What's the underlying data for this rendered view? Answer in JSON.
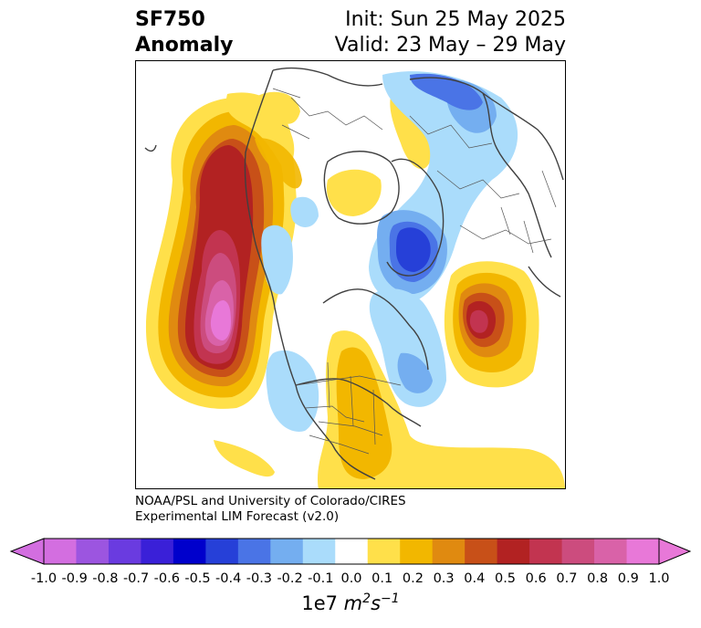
{
  "title": {
    "line1": "SF750",
    "line2": "Anomaly",
    "init": "Init: Sun 25 May 2025",
    "valid": "Valid: 23 May – 29 May"
  },
  "credit": {
    "line1": "NOAA/PSL and University of Colorado/CIRES",
    "line2": "Experimental LIM Forecast (v2.0)"
  },
  "colorbar": {
    "ticks": [
      "-1.0",
      "-0.9",
      "-0.8",
      "-0.7",
      "-0.6",
      "-0.5",
      "-0.4",
      "-0.3",
      "-0.2",
      "-0.1",
      "0.0",
      "0.1",
      "0.2",
      "0.3",
      "0.4",
      "0.5",
      "0.6",
      "0.7",
      "0.8",
      "0.9",
      "1.0"
    ],
    "colors": [
      "#d36ee0",
      "#9c55e0",
      "#6a3be0",
      "#3a20d8",
      "#0000cc",
      "#2640d8",
      "#4a74e6",
      "#74aef0",
      "#aadcfb",
      "#ffffff",
      "#ffe04a",
      "#f2b700",
      "#e08a10",
      "#c85018",
      "#b22222",
      "#c23450",
      "#cc4c7e",
      "#d962a8",
      "#e878d8"
    ],
    "low_extend_color": "#d36ee0",
    "high_extend_color": "#e878d8",
    "units_base": "1e7 ",
    "units_m": "m",
    "units_m_exp": "2",
    "units_s": "s",
    "units_s_exp": "−1"
  }
}
